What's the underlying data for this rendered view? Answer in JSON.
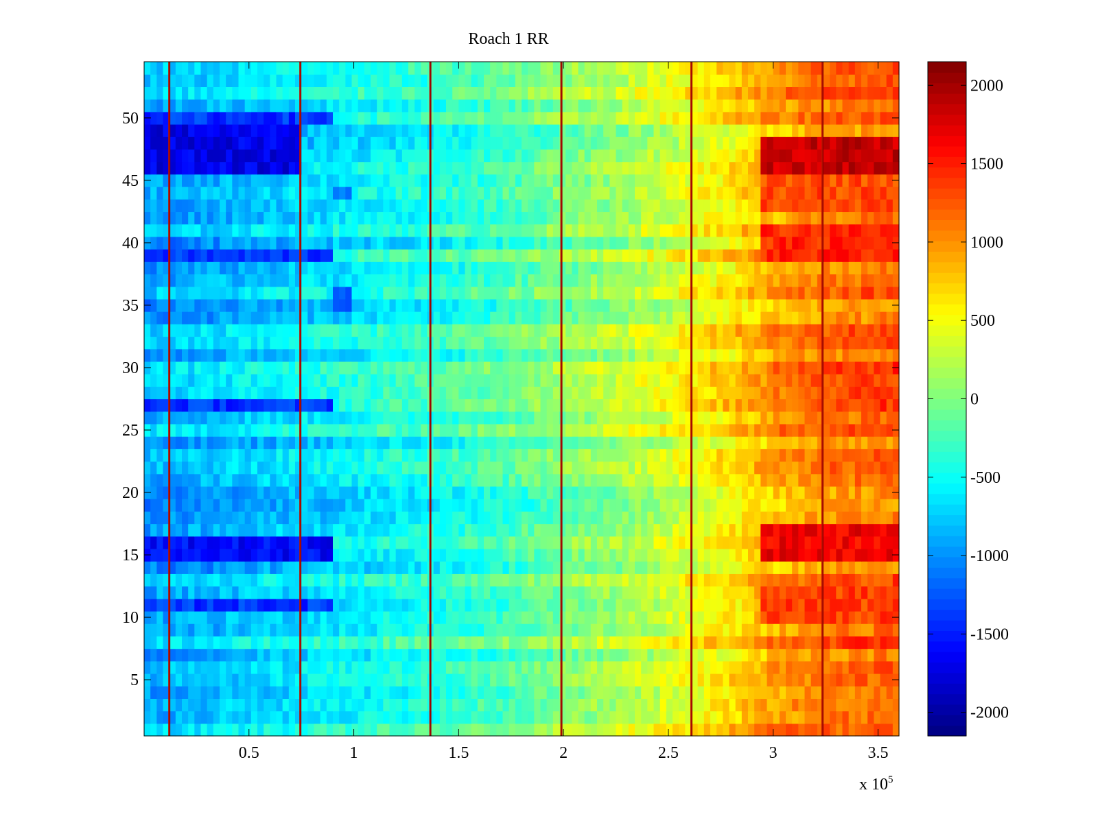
{
  "chart_data": {
    "type": "heatmap",
    "title": "Roach 1 RR",
    "xlabel": "",
    "ylabel": "",
    "x_multiplier_label": "x 10",
    "x_multiplier_exponent": "5",
    "xlim": [
      0,
      3.6
    ],
    "ylim": [
      0.5,
      54.5
    ],
    "x_ticks": [
      0.5,
      1,
      1.5,
      2,
      2.5,
      3,
      3.5
    ],
    "x_tick_labels": [
      "0.5",
      "1",
      "1.5",
      "2",
      "2.5",
      "3",
      "3.5"
    ],
    "y_ticks": [
      5,
      10,
      15,
      20,
      25,
      30,
      35,
      40,
      45,
      50
    ],
    "y_tick_labels": [
      "5",
      "10",
      "15",
      "20",
      "25",
      "30",
      "35",
      "40",
      "45",
      "50"
    ],
    "n_rows": 54,
    "colorbar": {
      "colormap": "jet",
      "limits": [
        -2150,
        2150
      ],
      "ticks": [
        -2000,
        -1500,
        -1000,
        -500,
        0,
        500,
        1000,
        1500,
        2000
      ],
      "tick_labels": [
        "-2000",
        "-1500",
        "-1000",
        "-500",
        "0",
        "500",
        "1000",
        "1500",
        "2000"
      ]
    },
    "trend": {
      "x": [
        0,
        0.25,
        0.5,
        0.75,
        1.0,
        1.25,
        1.5,
        1.75,
        2.0,
        2.25,
        2.5,
        2.75,
        3.0,
        3.25,
        3.6
      ],
      "mean_value": [
        -900,
        -850,
        -750,
        -650,
        -550,
        -450,
        -350,
        -200,
        0,
        150,
        350,
        600,
        900,
        1100,
        1200
      ]
    },
    "vertical_marker_lines_x": [
      0.12,
      0.745,
      1.365,
      1.99,
      2.61,
      3.235
    ],
    "highlighted_rows": [
      {
        "rows": [
          46,
          47,
          48,
          49
        ],
        "x_range": [
          0,
          0.75
        ],
        "value": -1700
      },
      {
        "rows": [
          15,
          16
        ],
        "x_range": [
          0,
          0.9
        ],
        "value": -1600
      },
      {
        "rows": [
          11,
          27,
          39,
          50
        ],
        "x_range": [
          0,
          0.9
        ],
        "value": -1400
      },
      {
        "rows": [
          46,
          47,
          48
        ],
        "x_range": [
          2.95,
          3.6
        ],
        "value": 1850
      },
      {
        "rows": [
          15,
          16,
          17
        ],
        "x_range": [
          2.95,
          3.6
        ],
        "value": 1650
      },
      {
        "rows": [
          39,
          40,
          41
        ],
        "x_range": [
          2.95,
          3.6
        ],
        "value": 1450
      },
      {
        "rows": [
          10,
          11,
          12
        ],
        "x_range": [
          2.95,
          3.6
        ],
        "value": 1350
      },
      {
        "rows": [
          43,
          44,
          45
        ],
        "x_range": [
          2.95,
          3.6
        ],
        "value": 1300
      },
      {
        "rows": [
          1
        ],
        "x_range": [
          2.95,
          3.6
        ],
        "value": 1200
      },
      {
        "rows": [
          35,
          36,
          44
        ],
        "x_range": [
          0.9,
          1.0
        ],
        "value": -1200
      }
    ]
  }
}
